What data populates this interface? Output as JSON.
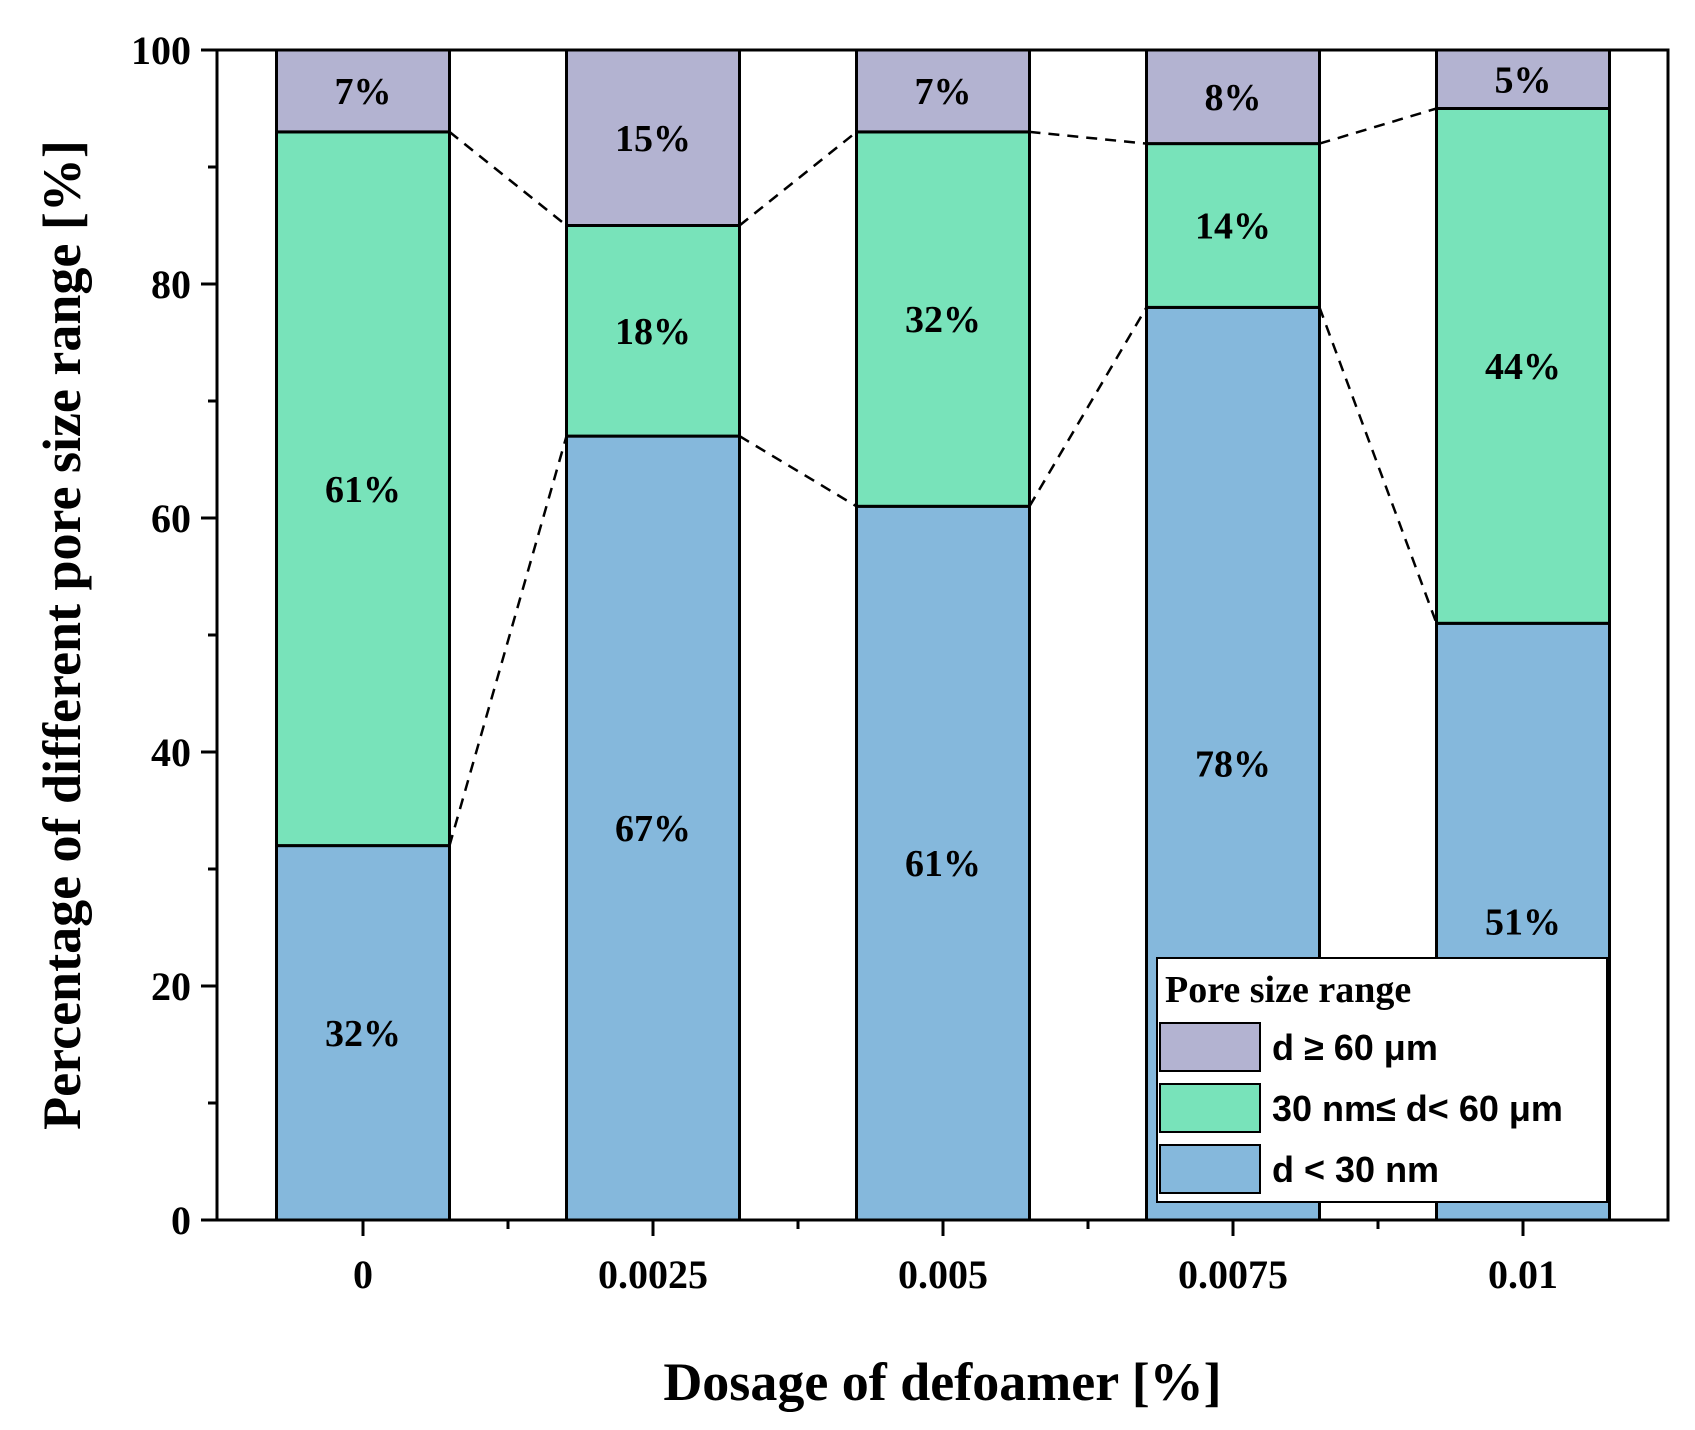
{
  "chart_data": {
    "type": "bar",
    "stacked": true,
    "categories": [
      "0",
      "0.0025",
      "0.005",
      "0.0075",
      "0.01"
    ],
    "series": [
      {
        "name": "d < 30 nm",
        "values": [
          32,
          67,
          61,
          78,
          51
        ],
        "labels": [
          "32%",
          "67%",
          "61%",
          "78%",
          "51%"
        ],
        "color": "#85b8dc"
      },
      {
        "name": "30 nm≤ d< 60 μm",
        "values": [
          61,
          18,
          32,
          14,
          44
        ],
        "labels": [
          "61%",
          "18%",
          "32%",
          "14%",
          "44%"
        ],
        "color": "#78e3ba"
      },
      {
        "name": "d ≥ 60 μm",
        "values": [
          7,
          15,
          7,
          8,
          5
        ],
        "labels": [
          "7%",
          "15%",
          "7%",
          "8%",
          "5%"
        ],
        "color": "#b3b3d1"
      }
    ],
    "xlabel": "Dosage of defoamer [%]",
    "ylabel": "Percentage of different pore size range [%]",
    "ylim": [
      0,
      100
    ],
    "yticks": [
      "0",
      "20",
      "40",
      "60",
      "80",
      "100"
    ],
    "legend": {
      "title": "Pore size range",
      "position": "bottom-right",
      "order": [
        2,
        1,
        0
      ]
    },
    "connectors": "dashed"
  }
}
